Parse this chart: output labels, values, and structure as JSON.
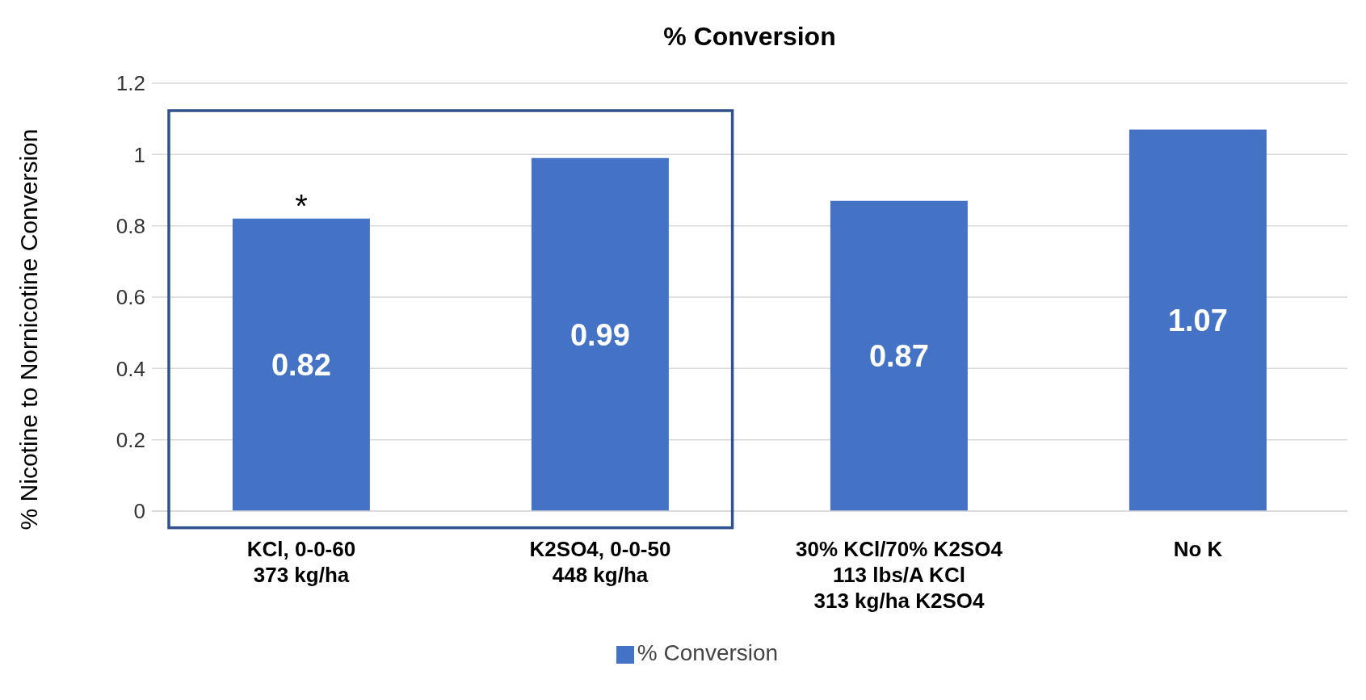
{
  "chart_data": {
    "type": "bar",
    "title": "% Conversion",
    "ylabel": "% Nicotine to Nornicotine Conversion",
    "categories": [
      "KCl, 0-0-60\n373 kg/ha",
      "K2SO4, 0-0-50\n448 kg/ha",
      "30% KCl/70% K2SO4\n113 lbs/A KCl\n313 kg/ha K2SO4",
      "No K"
    ],
    "series": [
      {
        "name": "% Conversion",
        "color": "#4472c4",
        "values": [
          0.82,
          0.99,
          0.87,
          1.07
        ]
      }
    ],
    "ylim": [
      0,
      1.2
    ],
    "yticks": [
      0,
      0.2,
      0.4,
      0.6,
      0.8,
      1,
      1.2
    ],
    "grid": "y",
    "legend": "bottom",
    "data_labels": true,
    "annotations": [
      {
        "text": "*",
        "x": "KCl, 0-0-60\n373 kg/ha",
        "y": 0.82
      }
    ]
  }
}
